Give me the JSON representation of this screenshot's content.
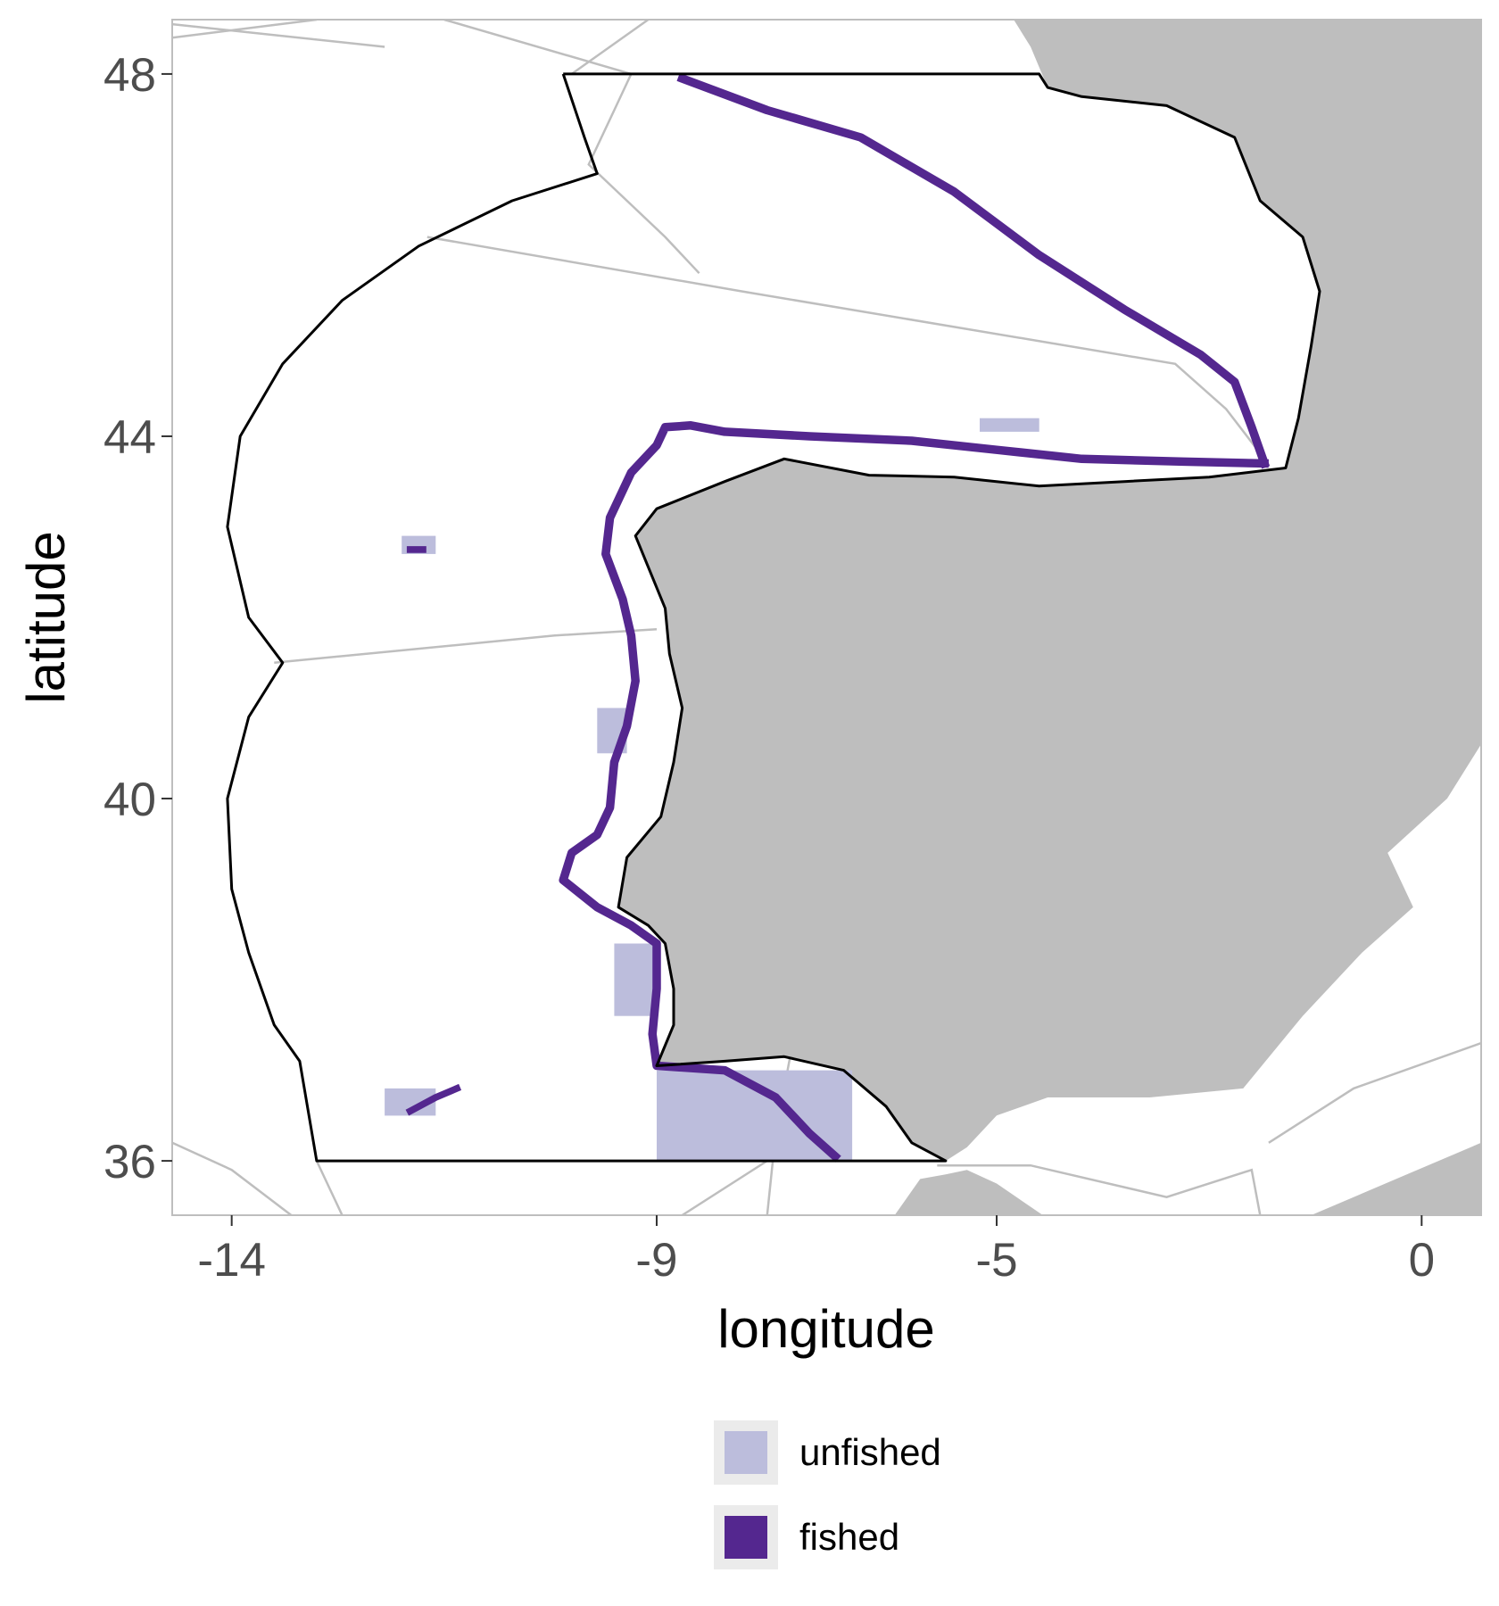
{
  "chart_data": {
    "type": "map",
    "xlabel": "longitude",
    "ylabel": "latitude",
    "xlim": [
      -14.7,
      0.7
    ],
    "ylim": [
      35.4,
      48.6
    ],
    "x_ticks": [
      {
        "value": -14,
        "label": "-14"
      },
      {
        "value": -9,
        "label": "-9"
      },
      {
        "value": -5,
        "label": "-5"
      },
      {
        "value": 0,
        "label": "0"
      }
    ],
    "y_ticks": [
      {
        "value": 48,
        "label": "48"
      },
      {
        "value": 44,
        "label": "44"
      },
      {
        "value": 40,
        "label": "40"
      },
      {
        "value": 36,
        "label": "36"
      }
    ],
    "grid": false,
    "legend_position": "bottom",
    "legend": [
      {
        "key": "unfished",
        "label": "unfished",
        "color": "#bcbddc"
      },
      {
        "key": "fished",
        "label": "fished",
        "color": "#54278f"
      }
    ],
    "colors": {
      "land": "#bebebe",
      "sea": "#ffffff",
      "boundary": "#000000",
      "ices_lines": "#bebebe",
      "panel_border": "#bebebe"
    },
    "study_area_boundary": [
      [
        -10.1,
        48.0
      ],
      [
        -4.5,
        48.0
      ],
      [
        -4.4,
        47.85
      ],
      [
        -4.0,
        47.75
      ],
      [
        -3.0,
        47.65
      ],
      [
        -2.2,
        47.3
      ],
      [
        -1.9,
        46.6
      ],
      [
        -1.4,
        46.2
      ],
      [
        -1.2,
        45.6
      ],
      [
        -1.3,
        45.0
      ],
      [
        -1.45,
        44.2
      ],
      [
        -1.6,
        43.65
      ],
      [
        -2.5,
        43.55
      ],
      [
        -3.5,
        43.5
      ],
      [
        -4.5,
        43.45
      ],
      [
        -5.5,
        43.55
      ],
      [
        -6.5,
        43.57
      ],
      [
        -7.5,
        43.75
      ],
      [
        -8.2,
        43.5
      ],
      [
        -9.0,
        43.2
      ],
      [
        -9.25,
        42.9
      ],
      [
        -8.9,
        42.1
      ],
      [
        -8.85,
        41.6
      ],
      [
        -8.7,
        41.0
      ],
      [
        -8.8,
        40.4
      ],
      [
        -8.95,
        39.8
      ],
      [
        -9.35,
        39.35
      ],
      [
        -9.45,
        38.8
      ],
      [
        -9.1,
        38.6
      ],
      [
        -8.9,
        38.4
      ],
      [
        -8.8,
        37.9
      ],
      [
        -8.8,
        37.5
      ],
      [
        -9.0,
        37.05
      ],
      [
        -8.2,
        37.1
      ],
      [
        -7.5,
        37.15
      ],
      [
        -6.8,
        37.0
      ],
      [
        -6.3,
        36.6
      ],
      [
        -6.0,
        36.2
      ],
      [
        -5.6,
        36.0
      ],
      [
        -13.0,
        36.0
      ],
      [
        -13.2,
        37.1
      ],
      [
        -13.5,
        37.5
      ],
      [
        -13.8,
        38.3
      ],
      [
        -14.0,
        39.0
      ],
      [
        -14.05,
        40.0
      ],
      [
        -13.8,
        40.9
      ],
      [
        -13.4,
        41.5
      ],
      [
        -13.8,
        42.0
      ],
      [
        -14.05,
        43.0
      ],
      [
        -13.9,
        44.0
      ],
      [
        -13.4,
        44.8
      ],
      [
        -12.7,
        45.5
      ],
      [
        -11.8,
        46.1
      ],
      [
        -10.7,
        46.6
      ],
      [
        -9.7,
        46.9
      ],
      [
        -9.85,
        47.3
      ],
      [
        -10.1,
        48.0
      ]
    ],
    "ices_division_lines": [
      [
        [
          -14.7,
          48.4
        ],
        [
          -13.0,
          48.6
        ]
      ],
      [
        [
          -11.5,
          48.6
        ],
        [
          -9.3,
          48.0
        ],
        [
          -9.5,
          47.6
        ],
        [
          -9.8,
          47.0
        ],
        [
          -8.9,
          46.2
        ],
        [
          -8.5,
          45.8
        ]
      ],
      [
        [
          -14.7,
          48.55
        ],
        [
          -12.2,
          48.3
        ]
      ],
      [
        [
          -9.1,
          48.6
        ],
        [
          -10.0,
          48.0
        ]
      ],
      [
        [
          -11.7,
          46.2
        ],
        [
          -8.0,
          45.6
        ],
        [
          -2.9,
          44.8
        ],
        [
          -2.3,
          44.3
        ],
        [
          -1.85,
          43.75
        ]
      ],
      [
        [
          -13.5,
          41.5
        ],
        [
          -10.2,
          41.8
        ],
        [
          -9.0,
          41.87
        ]
      ],
      [
        [
          -14.7,
          36.2
        ],
        [
          -14.0,
          35.9
        ],
        [
          -13.3,
          35.4
        ]
      ],
      [
        [
          -12.7,
          35.4
        ],
        [
          -13.0,
          36.0
        ]
      ],
      [
        [
          -7.4,
          37.3
        ],
        [
          -7.6,
          36.3
        ],
        [
          -7.7,
          35.4
        ]
      ],
      [
        [
          -8.7,
          35.4
        ],
        [
          -7.7,
          36.0
        ],
        [
          -5.7,
          36.0
        ]
      ],
      [
        [
          -5.7,
          35.95
        ],
        [
          -4.6,
          35.95
        ],
        [
          -3.0,
          35.6
        ],
        [
          -2.0,
          35.9
        ],
        [
          -1.9,
          35.4
        ]
      ],
      [
        [
          -1.8,
          36.2
        ],
        [
          -0.8,
          36.8
        ],
        [
          0.7,
          37.3
        ]
      ]
    ],
    "land_regions": [
      {
        "name": "iberia",
        "polygon": [
          [
            -9.0,
            43.2
          ],
          [
            -8.2,
            43.5
          ],
          [
            -7.5,
            43.75
          ],
          [
            -6.5,
            43.57
          ],
          [
            -5.5,
            43.55
          ],
          [
            -4.5,
            43.45
          ],
          [
            -3.5,
            43.5
          ],
          [
            -2.5,
            43.55
          ],
          [
            -1.6,
            43.65
          ],
          [
            -1.45,
            44.2
          ],
          [
            -1.3,
            45.0
          ],
          [
            -1.2,
            45.6
          ],
          [
            -1.4,
            46.2
          ],
          [
            -1.9,
            46.6
          ],
          [
            -2.2,
            47.3
          ],
          [
            -3.0,
            47.65
          ],
          [
            -4.0,
            47.75
          ],
          [
            -4.4,
            47.85
          ],
          [
            -4.6,
            48.3
          ],
          [
            -4.8,
            48.6
          ],
          [
            0.7,
            48.6
          ],
          [
            0.7,
            40.6
          ],
          [
            0.3,
            40.0
          ],
          [
            -0.4,
            39.4
          ],
          [
            -0.1,
            38.8
          ],
          [
            -0.7,
            38.3
          ],
          [
            -1.4,
            37.6
          ],
          [
            -2.1,
            36.8
          ],
          [
            -3.2,
            36.7
          ],
          [
            -4.4,
            36.7
          ],
          [
            -5.0,
            36.5
          ],
          [
            -5.35,
            36.15
          ],
          [
            -5.6,
            36.0
          ],
          [
            -6.0,
            36.2
          ],
          [
            -6.3,
            36.6
          ],
          [
            -6.8,
            37.0
          ],
          [
            -7.5,
            37.15
          ],
          [
            -8.2,
            37.1
          ],
          [
            -9.0,
            37.05
          ],
          [
            -8.8,
            37.5
          ],
          [
            -8.8,
            37.9
          ],
          [
            -8.9,
            38.4
          ],
          [
            -9.1,
            38.6
          ],
          [
            -9.45,
            38.8
          ],
          [
            -9.35,
            39.35
          ],
          [
            -8.95,
            39.8
          ],
          [
            -8.8,
            40.4
          ],
          [
            -8.7,
            41.0
          ],
          [
            -8.85,
            41.6
          ],
          [
            -8.9,
            42.1
          ],
          [
            -9.25,
            42.9
          ],
          [
            -9.0,
            43.2
          ]
        ]
      },
      {
        "name": "africa",
        "polygon": [
          [
            -6.2,
            35.4
          ],
          [
            -5.9,
            35.8
          ],
          [
            -5.6,
            35.85
          ],
          [
            -5.35,
            35.9
          ],
          [
            -5.0,
            35.75
          ],
          [
            -4.3,
            35.3
          ]
        ]
      },
      {
        "name": "africa-east",
        "polygon": [
          [
            -1.3,
            35.4
          ],
          [
            -0.3,
            35.8
          ],
          [
            0.7,
            36.2
          ],
          [
            0.7,
            35.4
          ]
        ]
      }
    ],
    "unfished_areas": [
      {
        "name": "galicia-bank",
        "x": [
          -12.0,
          -11.6
        ],
        "y": [
          42.7,
          42.9
        ]
      },
      {
        "name": "gorringe",
        "x": [
          -12.2,
          -11.6
        ],
        "y": [
          36.5,
          36.8
        ]
      },
      {
        "name": "cantabrian-east",
        "x": [
          -5.2,
          -4.5
        ],
        "y": [
          44.05,
          44.2
        ]
      },
      {
        "name": "portugal-north-slope",
        "x": [
          -9.7,
          -9.35
        ],
        "y": [
          40.5,
          41.0
        ]
      },
      {
        "name": "algarve-west",
        "x": [
          -9.5,
          -9.0
        ],
        "y": [
          37.6,
          38.4
        ]
      },
      {
        "name": "gulf-of-cadiz",
        "x": [
          -9.0,
          -6.7
        ],
        "y": [
          36.0,
          37.0
        ]
      }
    ],
    "fished_tracks": [
      {
        "name": "bay-of-biscay-slope",
        "width": 0.1,
        "points": [
          [
            -8.7,
            47.95
          ],
          [
            -7.7,
            47.6
          ],
          [
            -6.6,
            47.3
          ],
          [
            -5.5,
            46.7
          ],
          [
            -4.5,
            46.0
          ],
          [
            -3.5,
            45.4
          ],
          [
            -2.6,
            44.9
          ],
          [
            -2.2,
            44.6
          ],
          [
            -2.0,
            44.1
          ],
          [
            -1.85,
            43.7
          ]
        ]
      },
      {
        "name": "cantabrian-slope",
        "width": 0.1,
        "points": [
          [
            -1.85,
            43.7
          ],
          [
            -2.8,
            43.72
          ],
          [
            -4.0,
            43.75
          ],
          [
            -5.0,
            43.85
          ],
          [
            -6.0,
            43.95
          ],
          [
            -7.2,
            44.0
          ],
          [
            -8.2,
            44.05
          ],
          [
            -8.6,
            44.12
          ],
          [
            -8.9,
            44.1
          ],
          [
            -9.0,
            43.9
          ],
          [
            -9.3,
            43.6
          ],
          [
            -9.55,
            43.1
          ],
          [
            -9.6,
            42.7
          ],
          [
            -9.4,
            42.2
          ],
          [
            -9.3,
            41.8
          ],
          [
            -9.25,
            41.3
          ],
          [
            -9.35,
            40.8
          ],
          [
            -9.5,
            40.4
          ],
          [
            -9.55,
            39.9
          ],
          [
            -9.7,
            39.6
          ],
          [
            -10.0,
            39.4
          ],
          [
            -10.1,
            39.1
          ],
          [
            -9.7,
            38.8
          ],
          [
            -9.3,
            38.6
          ],
          [
            -9.0,
            38.4
          ],
          [
            -9.0,
            37.9
          ],
          [
            -9.05,
            37.4
          ],
          [
            -9.0,
            37.05
          ],
          [
            -8.2,
            37.0
          ],
          [
            -7.6,
            36.7
          ],
          [
            -7.2,
            36.3
          ],
          [
            -6.9,
            36.05
          ]
        ]
      },
      {
        "name": "gorringe-fished",
        "width": 0.08,
        "points": [
          [
            -11.9,
            36.55
          ],
          [
            -11.6,
            36.7
          ],
          [
            -11.35,
            36.8
          ]
        ]
      },
      {
        "name": "galicia-bank-fished",
        "width": 0.08,
        "points": [
          [
            -11.9,
            42.75
          ],
          [
            -11.75,
            42.75
          ]
        ]
      }
    ]
  }
}
